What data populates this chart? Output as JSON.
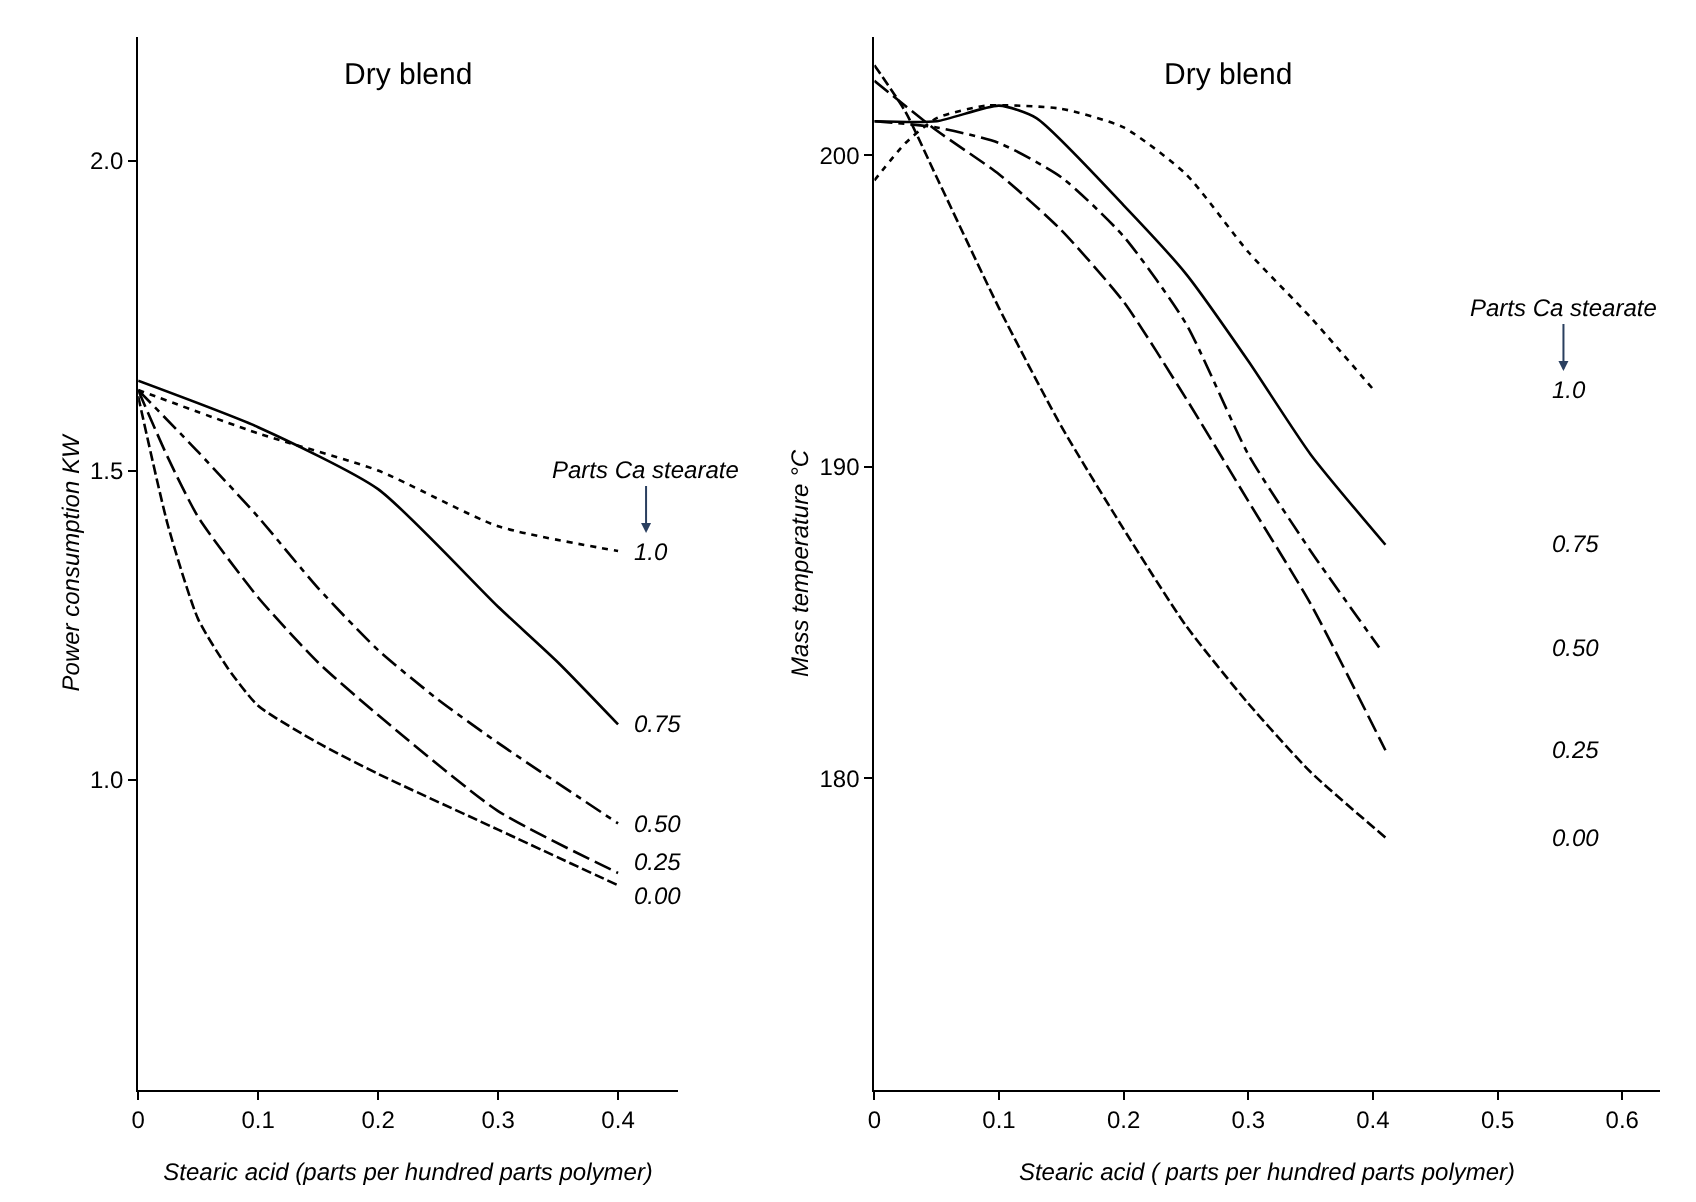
{
  "chart_data": [
    {
      "type": "line",
      "title": "Dry blend",
      "xlabel": "Stearic acid (parts per hundred parts polymer)",
      "ylabel": "Power consumption KW",
      "legend_title": "Parts Ca stearate",
      "legend": false,
      "marker": "none",
      "xlim": [
        0,
        0.45
      ],
      "ylim": [
        0.5,
        2.2
      ],
      "xticks": [
        0,
        0.1,
        0.2,
        0.3,
        0.4
      ],
      "yticks": [
        {
          "value": 1,
          "label": "1.0"
        },
        1.5,
        {
          "value": 2,
          "label": "2.0"
        }
      ],
      "series": [
        {
          "name": "1.0",
          "color": "#000000",
          "line_style": "dotted",
          "x": [
            0,
            0.1,
            0.2,
            0.3,
            0.4
          ],
          "values": [
            1.63,
            1.56,
            1.5,
            1.41,
            1.37
          ]
        },
        {
          "name": "0.75",
          "color": "#000000",
          "line_style": "solid",
          "x": [
            0,
            0.1,
            0.2,
            0.3,
            0.35,
            0.4
          ],
          "values": [
            1.645,
            1.57,
            1.47,
            1.28,
            1.19,
            1.09
          ]
        },
        {
          "name": "0.50",
          "color": "#000000",
          "line_style": "dashdot",
          "x": [
            0,
            0.05,
            0.1,
            0.15,
            0.2,
            0.25,
            0.3,
            0.4
          ],
          "values": [
            1.63,
            1.53,
            1.425,
            1.31,
            1.21,
            1.13,
            1.06,
            0.93
          ]
        },
        {
          "name": "0.25",
          "color": "#000000",
          "line_style": "longdash",
          "x": [
            0,
            0.025,
            0.05,
            0.1,
            0.15,
            0.2,
            0.3,
            0.4
          ],
          "values": [
            1.63,
            1.52,
            1.425,
            1.295,
            1.19,
            1.105,
            0.95,
            0.85
          ]
        },
        {
          "name": "0.00",
          "color": "#000000",
          "line_style": "dashed",
          "x": [
            0,
            0.025,
            0.05,
            0.075,
            0.1,
            0.15,
            0.2,
            0.3,
            0.4
          ],
          "values": [
            1.62,
            1.41,
            1.26,
            1.18,
            1.12,
            1.06,
            1.01,
            0.92,
            0.83
          ]
        }
      ]
    },
    {
      "type": "line",
      "title": "Dry blend",
      "xlabel": "Stearic acid ( parts per hundred parts polymer)",
      "ylabel": "Mass temperature °C",
      "legend_title": "Parts Ca stearate",
      "legend": false,
      "marker": "none",
      "xlim": [
        0,
        0.63
      ],
      "ylim": [
        170,
        203.8
      ],
      "xticks": [
        0,
        0.1,
        0.2,
        0.3,
        0.4,
        0.5,
        0.6
      ],
      "yticks": [
        180,
        190,
        200
      ],
      "series": [
        {
          "name": "1.0",
          "color": "#000000",
          "line_style": "dotted",
          "x": [
            0,
            0.025,
            0.05,
            0.09,
            0.15,
            0.2,
            0.25,
            0.3,
            0.35,
            0.4
          ],
          "values": [
            199.2,
            200.4,
            201.2,
            201.6,
            201.5,
            200.9,
            199.4,
            196.9,
            194.8,
            192.5
          ]
        },
        {
          "name": "0.75",
          "color": "#000000",
          "line_style": "solid",
          "x": [
            0,
            0.05,
            0.1,
            0.13,
            0.2,
            0.25,
            0.3,
            0.35,
            0.41
          ],
          "values": [
            201.1,
            201.1,
            201.6,
            201.2,
            198.4,
            196.2,
            193.4,
            190.4,
            187.5
          ]
        },
        {
          "name": "0.50",
          "color": "#000000",
          "line_style": "dashdot",
          "x": [
            0,
            0.05,
            0.1,
            0.15,
            0.2,
            0.25,
            0.3,
            0.35,
            0.405
          ],
          "values": [
            201.1,
            200.9,
            200.4,
            199.3,
            197.4,
            194.6,
            190.4,
            187.3,
            184.2
          ]
        },
        {
          "name": "0.25",
          "color": "#000000",
          "line_style": "longdash",
          "x": [
            0,
            0.05,
            0.1,
            0.15,
            0.2,
            0.25,
            0.3,
            0.35,
            0.41
          ],
          "values": [
            202.4,
            200.8,
            199.4,
            197.6,
            195.3,
            192.2,
            188.9,
            185.6,
            180.9
          ]
        },
        {
          "name": "0.00",
          "color": "#000000",
          "line_style": "dashed",
          "x": [
            0,
            0.025,
            0.05,
            0.1,
            0.15,
            0.2,
            0.25,
            0.3,
            0.35,
            0.41
          ],
          "values": [
            202.9,
            201.4,
            199.3,
            195.1,
            191.3,
            188.0,
            184.9,
            182.4,
            180.2,
            178.1
          ]
        }
      ]
    }
  ]
}
